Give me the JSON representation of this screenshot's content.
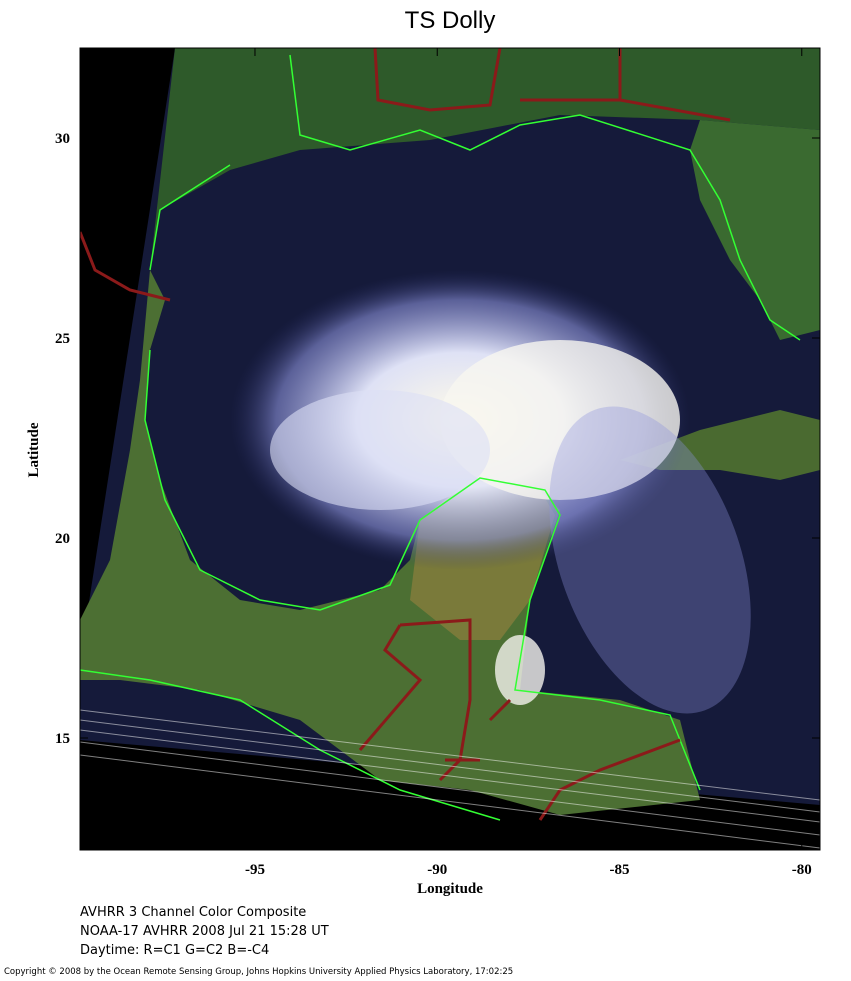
{
  "map": {
    "type": "map",
    "title": "TS Dolly",
    "x_label": "Longitude",
    "y_label": "Latitude",
    "xlim": [
      -99.8,
      -79.5
    ],
    "ylim": [
      12.2,
      32.25
    ],
    "xticks": [
      -95,
      -90,
      -85,
      -80
    ],
    "yticks": [
      15,
      20,
      25,
      30
    ]
  },
  "caption": {
    "lines": [
      "AVHRR 3 Channel Color Composite",
      "NOAA-17 AVHRR 2008 Jul 21 15:28 UT",
      "Daytime: R=C1 G=C2 B=-C4"
    ]
  },
  "copyright": "Copyright © 2008 by the Ocean Remote Sensing Group, Johns Hopkins University Applied Physics Laboratory, 17:02:25"
}
